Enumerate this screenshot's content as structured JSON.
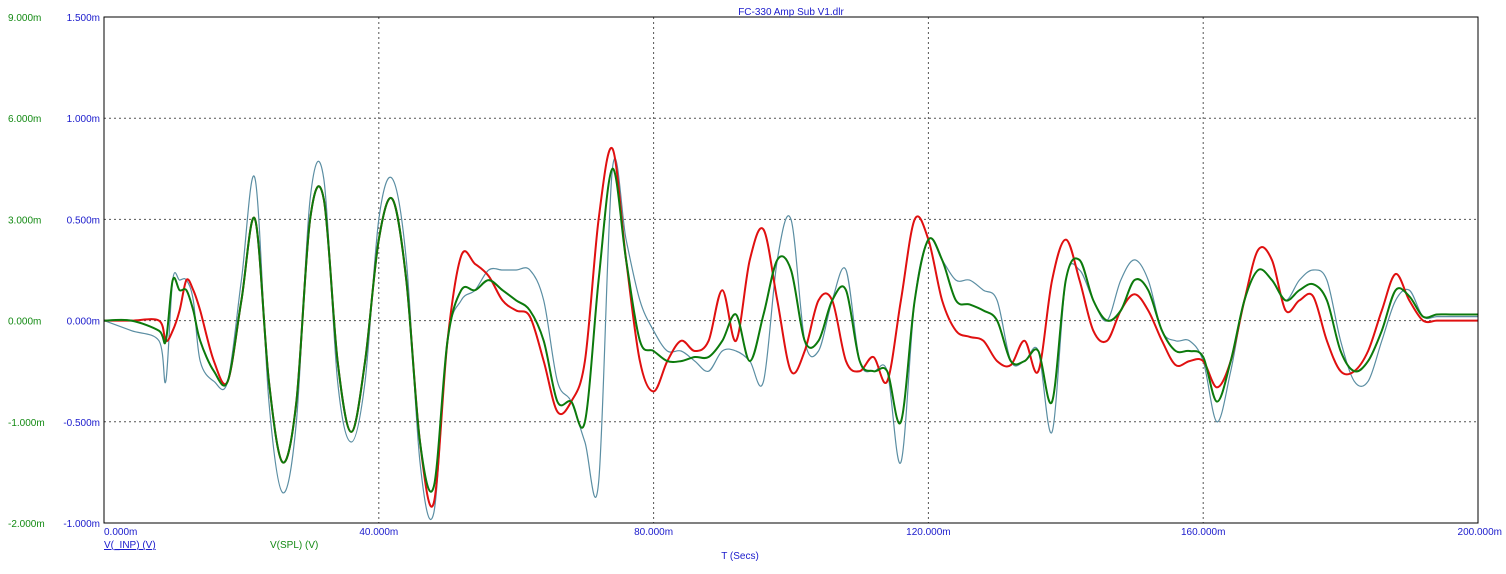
{
  "chart_data": {
    "type": "line",
    "title": "FC-330 Amp Sub V1.dlr",
    "xlabel": "T (Secs)",
    "x_unit": "s",
    "xlim": [
      0,
      0.2
    ],
    "x_ticks": [
      "0.000m",
      "40.000m",
      "80.000m",
      "120.000m",
      "160.000m",
      "200.000m"
    ],
    "y_left_outer": {
      "ticks": [
        "-2.000m",
        "-1.000m",
        "0.000m",
        "3.000m",
        "6.000m",
        "9.000m"
      ],
      "color": "#138a13"
    },
    "y_left_inner": {
      "ylim": [
        -0.001,
        0.0015
      ],
      "ticks": [
        "-1.000m",
        "-0.500m",
        "0.000m",
        "0.500m",
        "1.000m",
        "1.500m"
      ],
      "color": "#1a1acc"
    },
    "grid": true,
    "legend": [
      {
        "label": "V(_INP) (V)",
        "color": "#1a1acc"
      },
      {
        "label": "V(SPL) (V)",
        "color": "#138a13"
      }
    ],
    "x": [
      0,
      0.004,
      0.008,
      0.009,
      0.01,
      0.011,
      0.012,
      0.013,
      0.014,
      0.016,
      0.018,
      0.02,
      0.022,
      0.024,
      0.026,
      0.028,
      0.03,
      0.032,
      0.034,
      0.036,
      0.038,
      0.04,
      0.042,
      0.044,
      0.046,
      0.048,
      0.05,
      0.052,
      0.054,
      0.056,
      0.058,
      0.06,
      0.062,
      0.064,
      0.066,
      0.068,
      0.07,
      0.072,
      0.074,
      0.076,
      0.078,
      0.08,
      0.082,
      0.084,
      0.086,
      0.088,
      0.09,
      0.092,
      0.094,
      0.096,
      0.098,
      0.1,
      0.102,
      0.104,
      0.106,
      0.108,
      0.11,
      0.112,
      0.114,
      0.116,
      0.118,
      0.12,
      0.122,
      0.124,
      0.126,
      0.128,
      0.13,
      0.132,
      0.134,
      0.136,
      0.138,
      0.14,
      0.142,
      0.144,
      0.146,
      0.148,
      0.15,
      0.152,
      0.154,
      0.156,
      0.158,
      0.16,
      0.162,
      0.164,
      0.166,
      0.168,
      0.17,
      0.172,
      0.174,
      0.176,
      0.178,
      0.18,
      0.182,
      0.184,
      0.186,
      0.188,
      0.19,
      0.192,
      0.194,
      0.196,
      0.198,
      0.2
    ],
    "series": [
      {
        "color": "#e01010",
        "values": [
          0,
          0,
          0,
          -0.0001,
          -5e-05,
          5e-05,
          0.0002,
          0.00015,
          5e-05,
          -0.0002,
          -0.0003,
          0.0001,
          0.0005,
          -0.0003,
          -0.0007,
          -0.0004,
          0.0005,
          0.0006,
          -0.0002,
          -0.00055,
          -0.0002,
          0.0004,
          0.0006,
          0.0002,
          -0.0006,
          -0.0009,
          -0.0001,
          0.00032,
          0.00028,
          0.00022,
          0.0001,
          5e-05,
          2e-05,
          -0.0002,
          -0.00045,
          -0.0004,
          -0.0002,
          0.0005,
          0.00085,
          0.0003,
          -0.0002,
          -0.00035,
          -0.0002,
          -0.0001,
          -0.00015,
          -0.0001,
          0.00015,
          -0.0001,
          0.0003,
          0.00045,
          0.0001,
          -0.00025,
          -0.00015,
          0.0001,
          0.0001,
          -0.0002,
          -0.00025,
          -0.00018,
          -0.0003,
          0.0001,
          0.0005,
          0.0004,
          0.0001,
          -5e-05,
          -8e-05,
          -0.0001,
          -0.0002,
          -0.00022,
          -0.0001,
          -0.00025,
          0.0002,
          0.0004,
          0.0002,
          -5e-05,
          -0.0001,
          5e-05,
          0.00013,
          5e-05,
          -0.0001,
          -0.00022,
          -0.0002,
          -0.0002,
          -0.00033,
          -0.0002,
          0.0001,
          0.00035,
          0.0003,
          5e-05,
          0.0001,
          0.00012,
          -0.0001,
          -0.00025,
          -0.00025,
          -0.00015,
          5e-05,
          0.00023,
          0.0001,
          0.0,
          0,
          0,
          0,
          0
        ]
      },
      {
        "color": "#0c7a0c",
        "values": [
          0,
          0,
          -5e-05,
          -0.0001,
          0.0002,
          0.00015,
          0.00015,
          5e-05,
          -0.0001,
          -0.00025,
          -0.0003,
          0.0001,
          0.0005,
          -0.0003,
          -0.0007,
          -0.0004,
          0.0005,
          0.0006,
          -0.0002,
          -0.00055,
          -0.0002,
          0.0004,
          0.0006,
          0.0002,
          -0.0006,
          -0.00082,
          -0.0001,
          0.00015,
          0.00015,
          0.0002,
          0.00015,
          0.0001,
          5e-05,
          -0.0001,
          -0.0004,
          -0.0004,
          -0.0005,
          0.0002,
          0.00075,
          0.0003,
          -0.0001,
          -0.00015,
          -0.0002,
          -0.0002,
          -0.00018,
          -0.00018,
          -0.0001,
          3e-05,
          -0.0002,
          3e-05,
          0.0003,
          0.00025,
          -0.0001,
          -0.0001,
          0.0001,
          0.00015,
          -0.0002,
          -0.00025,
          -0.00025,
          -0.0005,
          0.0001,
          0.0004,
          0.0003,
          0.0001,
          8e-05,
          5e-05,
          0.0,
          -0.0002,
          -0.0002,
          -0.00015,
          -0.0004,
          0.0002,
          0.0003,
          0.0001,
          0.0,
          5e-05,
          0.0002,
          0.00015,
          -5e-05,
          -0.00015,
          -0.00015,
          -0.00018,
          -0.0004,
          -0.0002,
          0.0001,
          0.00025,
          0.0002,
          0.0001,
          0.00015,
          0.00018,
          0.0001,
          -0.00015,
          -0.00025,
          -0.0002,
          -5e-05,
          0.00015,
          0.00012,
          2e-05,
          3e-05,
          3e-05,
          3e-05,
          3e-05
        ]
      },
      {
        "color": "#5b8ea3",
        "values": [
          0,
          -5e-05,
          -0.0001,
          -0.0003,
          0.0002,
          0.0002,
          0.0002,
          0.0001,
          -0.0002,
          -0.0003,
          -0.0003,
          0.0002,
          0.0007,
          -0.0004,
          -0.00085,
          -0.0005,
          0.0006,
          0.0007,
          -0.0003,
          -0.0006,
          -0.0003,
          0.0005,
          0.0007,
          0.0003,
          -0.0007,
          -0.00095,
          -0.0001,
          0.0001,
          0.00015,
          0.00025,
          0.00025,
          0.00025,
          0.00025,
          0.0001,
          -0.0003,
          -0.0004,
          -0.0006,
          -0.0008,
          0.00075,
          0.0004,
          0.0001,
          -5e-05,
          -0.00015,
          -0.00015,
          -0.0002,
          -0.00025,
          -0.00015,
          -0.00015,
          -0.0002,
          -0.0003,
          0.0003,
          0.0005,
          -0.0001,
          -0.00015,
          0.0001,
          0.00025,
          -0.0002,
          -0.00025,
          -0.00025,
          -0.0007,
          0.0001,
          0.0004,
          0.0003,
          0.0002,
          0.0002,
          0.00015,
          0.0001,
          -0.0002,
          -0.0002,
          -0.00015,
          -0.00055,
          0.0002,
          0.00025,
          0.0001,
          0.0,
          0.0002,
          0.0003,
          0.0002,
          -5e-05,
          -0.0001,
          -0.0001,
          -0.0002,
          -0.0005,
          -0.00025,
          0.0001,
          0.00025,
          0.0002,
          0.0001,
          0.0002,
          0.00025,
          0.0002,
          -0.0001,
          -0.0003,
          -0.0003,
          -0.0001,
          0.0001,
          0.00015,
          2e-05,
          2e-05,
          2e-05,
          2e-05,
          2e-05
        ]
      }
    ]
  }
}
